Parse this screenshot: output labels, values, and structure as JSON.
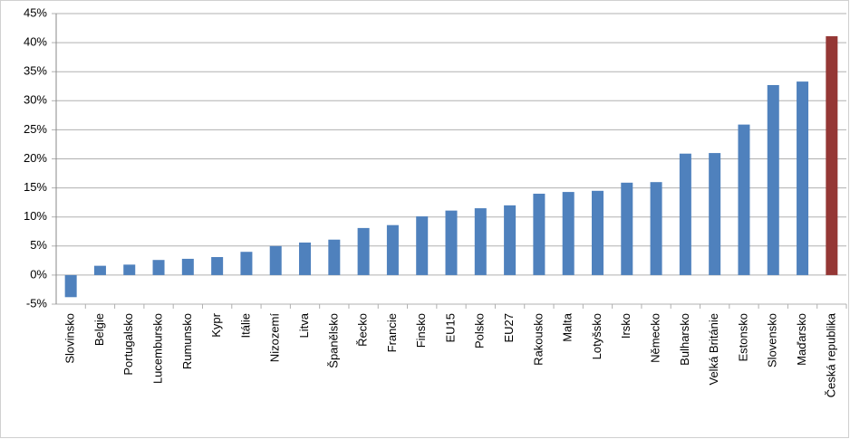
{
  "chart_data": {
    "type": "bar",
    "categories": [
      "Slovinsko",
      "Belgie",
      "Portugalsko",
      "Lucembursko",
      "Rumunsko",
      "Kypr",
      "Itálie",
      "Nizozemí",
      "Litva",
      "Španělsko",
      "Řecko",
      "Francie",
      "Finsko",
      "EU15",
      "Polsko",
      "EU27",
      "Rakousko",
      "Malta",
      "Lotyšsko",
      "Irsko",
      "Německo",
      "Bulharsko",
      "Velká Británie",
      "Estonsko",
      "Slovensko",
      "Maďarsko",
      "Česká republika"
    ],
    "values": [
      -3.8,
      1.6,
      1.8,
      2.6,
      2.8,
      3.1,
      4.0,
      5.0,
      5.6,
      6.1,
      8.1,
      8.6,
      10.1,
      11.1,
      11.5,
      12.0,
      14.0,
      14.3,
      14.5,
      15.9,
      16.0,
      20.9,
      21.0,
      25.9,
      32.7,
      33.3,
      41.1
    ],
    "colors": [
      "#4f81bd",
      "#4f81bd",
      "#4f81bd",
      "#4f81bd",
      "#4f81bd",
      "#4f81bd",
      "#4f81bd",
      "#4f81bd",
      "#4f81bd",
      "#4f81bd",
      "#4f81bd",
      "#4f81bd",
      "#4f81bd",
      "#4f81bd",
      "#4f81bd",
      "#4f81bd",
      "#4f81bd",
      "#4f81bd",
      "#4f81bd",
      "#4f81bd",
      "#4f81bd",
      "#4f81bd",
      "#4f81bd",
      "#4f81bd",
      "#4f81bd",
      "#4f81bd",
      "#953735"
    ],
    "ylim": [
      -5,
      45
    ],
    "yticks": [
      {
        "value": -5,
        "label": "-5%"
      },
      {
        "value": 0,
        "label": "0%"
      },
      {
        "value": 5,
        "label": "5%"
      },
      {
        "value": 10,
        "label": "10%"
      },
      {
        "value": 15,
        "label": "15%"
      },
      {
        "value": 20,
        "label": "20%"
      },
      {
        "value": 25,
        "label": "25%"
      },
      {
        "value": 30,
        "label": "30%"
      },
      {
        "value": 35,
        "label": "35%"
      },
      {
        "value": 40,
        "label": "40%"
      },
      {
        "value": 45,
        "label": "45%"
      }
    ],
    "grid": true
  }
}
